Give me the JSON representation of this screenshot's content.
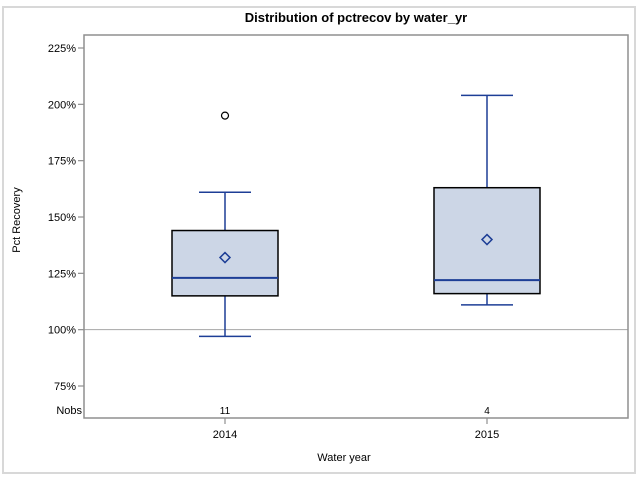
{
  "colors": {
    "box_fill": "#ccd6e6",
    "box_stroke": "#000000",
    "line": "#1d3e96",
    "frame": "#8f8f8f",
    "reference": "#a6a6a6",
    "text": "#000000",
    "border": "#d8d8d8",
    "background": "#ffffff"
  },
  "chart_data": {
    "type": "boxplot",
    "title": "Distribution of pctrecov by water_yr",
    "xlabel": "Water year",
    "ylabel": "Pct Recovery",
    "nobs_label": "Nobs",
    "categories": [
      "2014",
      "2015"
    ],
    "yticks": [
      225,
      200,
      175,
      150,
      125,
      100,
      75
    ],
    "ytick_labels": [
      "225%",
      "200%",
      "175%",
      "150%",
      "125%",
      "100%",
      "75%"
    ],
    "ylim": [
      61,
      231
    ],
    "grid": "off",
    "legend": "none",
    "reference_line": 100,
    "series": [
      {
        "category": "2014",
        "nobs": "11",
        "whisker_low": 97,
        "q1": 115,
        "median": 123,
        "q3": 144,
        "whisker_high": 161,
        "mean": 132,
        "outliers": [
          195
        ]
      },
      {
        "category": "2015",
        "nobs": "4",
        "whisker_low": 111,
        "q1": 116,
        "median": 122,
        "q3": 163,
        "whisker_high": 204,
        "mean": 140,
        "outliers": []
      }
    ]
  }
}
